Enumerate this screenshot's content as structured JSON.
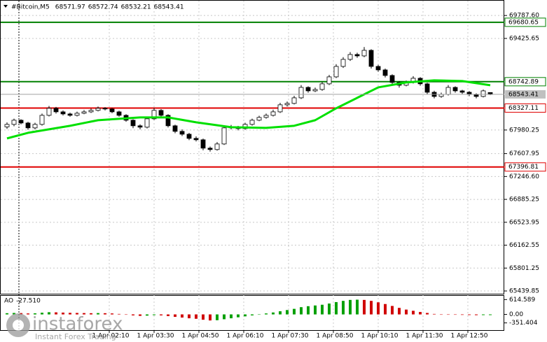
{
  "chart_data": {
    "type": "candlestick",
    "title": "#Bitcoin,M5",
    "ohlc": [
      [
        68030,
        68101,
        67998,
        68069
      ],
      [
        68069,
        68160,
        68040,
        68135
      ],
      [
        68135,
        68150,
        68070,
        68091
      ],
      [
        68091,
        68110,
        67985,
        68014
      ],
      [
        68014,
        68095,
        67990,
        68069
      ],
      [
        68069,
        68240,
        68050,
        68212
      ],
      [
        68212,
        68360,
        68195,
        68323
      ],
      [
        68323,
        68345,
        68240,
        68267
      ],
      [
        68267,
        68290,
        68210,
        68234
      ],
      [
        68234,
        68255,
        68190,
        68212
      ],
      [
        68212,
        68270,
        68195,
        68245
      ],
      [
        68245,
        68295,
        68230,
        68267
      ],
      [
        68267,
        68320,
        68250,
        68290
      ],
      [
        68290,
        68350,
        68275,
        68323
      ],
      [
        68323,
        68340,
        68290,
        68312
      ],
      [
        68312,
        68330,
        68245,
        68267
      ],
      [
        68267,
        68285,
        68190,
        68212
      ],
      [
        68212,
        68230,
        68110,
        68135
      ],
      [
        68135,
        68150,
        68010,
        68047
      ],
      [
        68047,
        68070,
        67990,
        68025
      ],
      [
        68025,
        68180,
        68005,
        68157
      ],
      [
        68157,
        68330,
        68140,
        68290
      ],
      [
        68290,
        68310,
        68190,
        68212
      ],
      [
        68212,
        68230,
        68020,
        68047
      ],
      [
        68047,
        68065,
        67930,
        67959
      ],
      [
        67959,
        67990,
        67885,
        67914
      ],
      [
        67914,
        67935,
        67820,
        67848
      ],
      [
        67848,
        67880,
        67800,
        67826
      ],
      [
        67826,
        67845,
        67660,
        67694
      ],
      [
        67694,
        67720,
        67640,
        67672
      ],
      [
        67672,
        67790,
        67655,
        67760
      ],
      [
        67760,
        68040,
        67745,
        68014
      ],
      [
        68014,
        68060,
        67990,
        68025
      ],
      [
        68025,
        68045,
        67975,
        68003
      ],
      [
        68003,
        68095,
        67985,
        68069
      ],
      [
        68069,
        68160,
        68050,
        68135
      ],
      [
        68135,
        68205,
        68120,
        68179
      ],
      [
        68179,
        68240,
        68160,
        68212
      ],
      [
        68212,
        68300,
        68195,
        68267
      ],
      [
        68267,
        68410,
        68250,
        68378
      ],
      [
        68378,
        68430,
        68350,
        68400
      ],
      [
        68400,
        68520,
        68385,
        68488
      ],
      [
        68488,
        68690,
        68470,
        68653
      ],
      [
        68653,
        68670,
        68570,
        68598
      ],
      [
        68598,
        68650,
        68580,
        68620
      ],
      [
        68620,
        68740,
        68600,
        68709
      ],
      [
        68709,
        68850,
        68690,
        68819
      ],
      [
        68819,
        69020,
        68800,
        68984
      ],
      [
        68984,
        69130,
        68960,
        69095
      ],
      [
        69095,
        69210,
        69070,
        69172
      ],
      [
        69172,
        69200,
        69120,
        69150
      ],
      [
        69150,
        69290,
        69130,
        69238
      ],
      [
        69238,
        69255,
        68950,
        68984
      ],
      [
        68984,
        69010,
        68900,
        68929
      ],
      [
        68929,
        68950,
        68810,
        68841
      ],
      [
        68841,
        68860,
        68700,
        68731
      ],
      [
        68731,
        68750,
        68650,
        68687
      ],
      [
        68687,
        68760,
        68670,
        68731
      ],
      [
        68731,
        68830,
        68715,
        68797
      ],
      [
        68797,
        68815,
        68680,
        68709
      ],
      [
        68709,
        68725,
        68545,
        68576
      ],
      [
        68576,
        68600,
        68480,
        68510
      ],
      [
        68510,
        68570,
        68490,
        68543
      ],
      [
        68543,
        68690,
        68525,
        68653
      ],
      [
        68653,
        68670,
        68570,
        68598
      ],
      [
        68598,
        68615,
        68550,
        68576
      ],
      [
        68576,
        68595,
        68515,
        68543
      ],
      [
        68543,
        68560,
        68480,
        68510
      ],
      [
        68510,
        68620,
        68495,
        68598
      ],
      [
        68571.97,
        68572.74,
        68532.21,
        68543.41
      ]
    ],
    "ma": {
      "color": "#00e000",
      "x": [
        0,
        3,
        9,
        13,
        19,
        23,
        27,
        32,
        37,
        41,
        44,
        47,
        50,
        53,
        57,
        61,
        65,
        69
      ],
      "values": [
        67848,
        67936,
        68047,
        68135,
        68179,
        68179,
        68102,
        68025,
        68014,
        68047,
        68135,
        68323,
        68488,
        68653,
        68731,
        68764,
        68753,
        68687
      ]
    },
    "ylim": [
      65396,
      69944
    ],
    "yticks": [
      {
        "value": 69787.6,
        "label": "69787.60"
      },
      69425.65,
      67980.25,
      67607.95,
      {
        "value": 67246.6,
        "label": "67246.60"
      },
      66885.25,
      66523.95,
      66162.55,
      65801.25,
      65439.85
    ],
    "levels": [
      {
        "value": 69680.65,
        "color": "#008000"
      },
      {
        "value": 68742.89,
        "color": "#008000"
      },
      {
        "value": 68327.11,
        "color": "#e00000"
      },
      {
        "value": 67396.81,
        "color": "#e00000"
      }
    ],
    "x_labels": [
      "1 Apr 02:10",
      "1 Apr 03:30",
      "1 Apr 04:50",
      "1 Apr 06:10",
      "1 Apr 07:30",
      "1 Apr 08:50",
      "1 Apr 10:10",
      "1 Apr 11:30",
      "1 Apr 12:50"
    ],
    "grid": true,
    "ao": {
      "name": "AO",
      "last_value_label": "-27.510",
      "up_color": "#00a000",
      "down_color": "#d00000",
      "values": [
        50,
        60,
        55,
        40,
        45,
        70,
        90,
        85,
        75,
        65,
        60,
        55,
        50,
        55,
        50,
        40,
        20,
        -10,
        -40,
        -60,
        -50,
        -30,
        -40,
        -70,
        -100,
        -130,
        -160,
        -180,
        -220,
        -250,
        -240,
        -200,
        -160,
        -120,
        -80,
        -40,
        0,
        40,
        80,
        130,
        180,
        230,
        300,
        340,
        370,
        400,
        450,
        510,
        560,
        600,
        610,
        600,
        560,
        500,
        430,
        350,
        270,
        200,
        150,
        100,
        60,
        20,
        0,
        -10,
        -15,
        -20,
        -25,
        -30,
        -28,
        -27.51
      ],
      "ylim": [
        -650,
        740
      ],
      "yticks": [
        614.589,
        {
          "value": 0,
          "label": "0.00"
        },
        -351.404
      ]
    },
    "watermark": {
      "brand": "instaforex",
      "tagline": "Instant Forex Trading"
    }
  }
}
